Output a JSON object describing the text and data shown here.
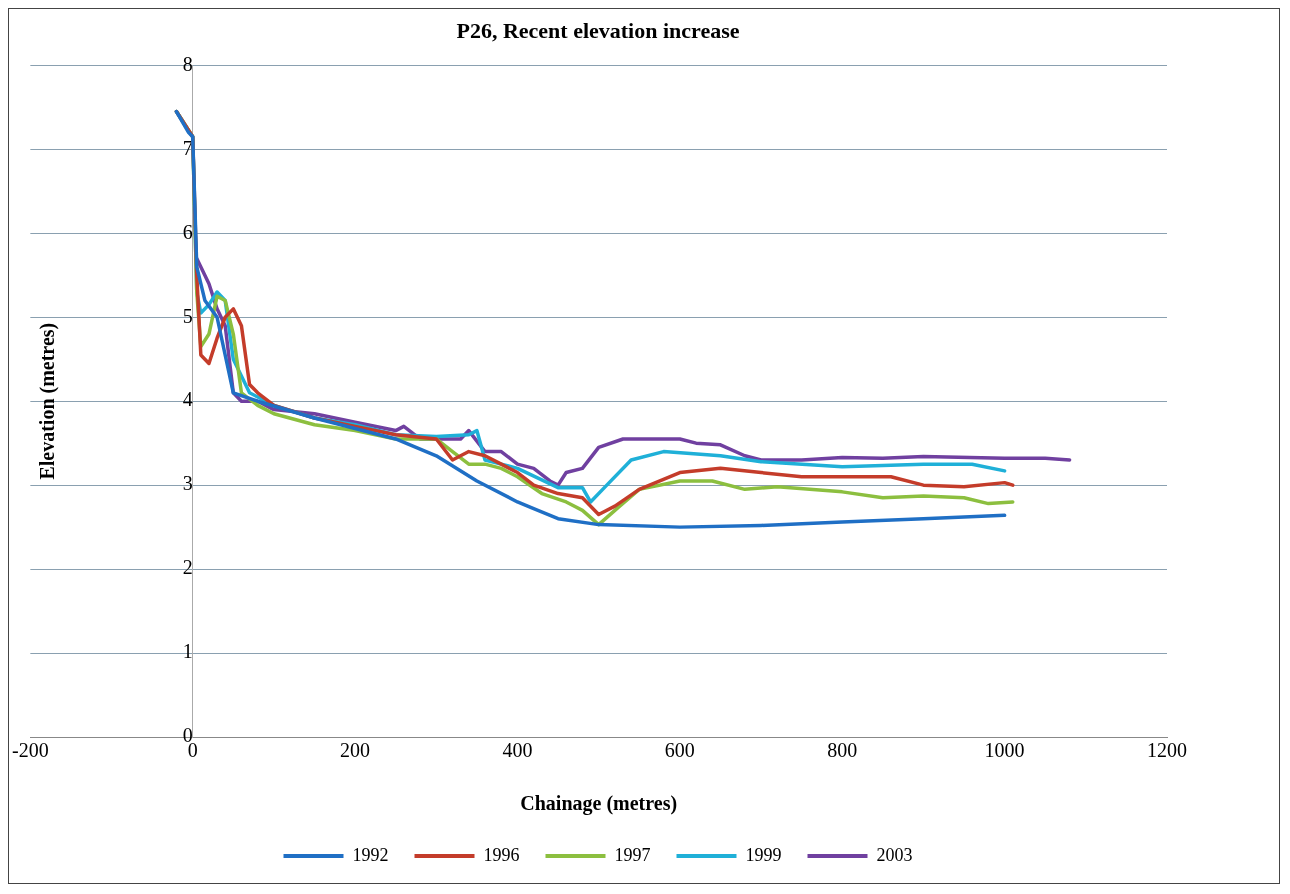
{
  "chart_data": {
    "type": "line",
    "title": "P26, Recent elevation increase",
    "xlabel": "Chainage (metres)",
    "ylabel": "Elevation (metres)",
    "xlim": [
      -200,
      1200
    ],
    "xticks": [
      -200,
      0,
      200,
      400,
      600,
      800,
      1000,
      1200
    ],
    "ylim": [
      0,
      8
    ],
    "yticks": [
      0,
      1,
      2,
      3,
      4,
      5,
      6,
      7,
      8
    ],
    "grid": "y",
    "legend": "bottom",
    "marker": "none",
    "line_style": "solid",
    "series": [
      {
        "name": "1992",
        "color": "#1f6fc5",
        "x": [
          -20,
          -5,
          0,
          5,
          15,
          30,
          50,
          80,
          150,
          250,
          300,
          350,
          400,
          450,
          500,
          600,
          700,
          800,
          900,
          1000
        ],
        "values": [
          7.45,
          7.2,
          7.15,
          5.6,
          5.2,
          5.0,
          4.1,
          4.0,
          3.8,
          3.55,
          3.35,
          3.05,
          2.8,
          2.6,
          2.53,
          2.5,
          2.52,
          2.56,
          2.6,
          2.64
        ]
      },
      {
        "name": "1996",
        "color": "#c43c2a",
        "x": [
          -20,
          0,
          5,
          10,
          20,
          30,
          40,
          50,
          60,
          70,
          80,
          100,
          150,
          200,
          250,
          300,
          320,
          340,
          360,
          380,
          400,
          420,
          450,
          480,
          500,
          520,
          550,
          600,
          650,
          700,
          750,
          800,
          860,
          900,
          950,
          1000,
          1010
        ],
        "values": [
          7.45,
          7.15,
          5.5,
          4.55,
          4.45,
          4.75,
          5.0,
          5.1,
          4.9,
          4.2,
          4.1,
          3.95,
          3.8,
          3.7,
          3.6,
          3.55,
          3.3,
          3.4,
          3.35,
          3.25,
          3.15,
          3.0,
          2.9,
          2.85,
          2.65,
          2.75,
          2.95,
          3.15,
          3.2,
          3.15,
          3.1,
          3.1,
          3.1,
          3.0,
          2.98,
          3.03,
          3.0
        ]
      },
      {
        "name": "1997",
        "color": "#8cbf3f",
        "x": [
          -20,
          0,
          5,
          10,
          20,
          30,
          40,
          50,
          60,
          80,
          100,
          150,
          200,
          250,
          300,
          320,
          340,
          360,
          380,
          400,
          430,
          460,
          480,
          500,
          520,
          550,
          600,
          640,
          680,
          720,
          800,
          850,
          900,
          950,
          980,
          1010
        ],
        "values": [
          7.45,
          7.15,
          5.3,
          4.65,
          4.8,
          5.25,
          5.2,
          4.8,
          4.1,
          3.95,
          3.85,
          3.72,
          3.65,
          3.55,
          3.55,
          3.4,
          3.25,
          3.25,
          3.2,
          3.1,
          2.9,
          2.8,
          2.7,
          2.53,
          2.7,
          2.95,
          3.05,
          3.05,
          2.95,
          2.98,
          2.92,
          2.85,
          2.87,
          2.85,
          2.78,
          2.8
        ]
      },
      {
        "name": "1999",
        "color": "#1fb0d8",
        "x": [
          -20,
          0,
          5,
          10,
          20,
          30,
          40,
          50,
          60,
          70,
          100,
          150,
          200,
          250,
          300,
          340,
          350,
          360,
          380,
          400,
          450,
          480,
          490,
          510,
          540,
          580,
          650,
          700,
          800,
          900,
          960,
          1000
        ],
        "values": [
          7.45,
          7.15,
          5.3,
          5.05,
          5.15,
          5.3,
          5.2,
          4.5,
          4.3,
          4.1,
          3.95,
          3.8,
          3.72,
          3.6,
          3.58,
          3.6,
          3.65,
          3.3,
          3.25,
          3.2,
          2.97,
          2.97,
          2.8,
          3.0,
          3.3,
          3.4,
          3.35,
          3.28,
          3.22,
          3.25,
          3.25,
          3.17
        ]
      },
      {
        "name": "2003",
        "color": "#7040a0",
        "x": [
          5,
          20,
          30,
          40,
          50,
          60,
          80,
          100,
          150,
          200,
          250,
          260,
          280,
          330,
          340,
          360,
          380,
          400,
          420,
          440,
          450,
          460,
          480,
          500,
          530,
          560,
          600,
          620,
          650,
          680,
          700,
          750,
          800,
          850,
          900,
          1000,
          1050,
          1080
        ],
        "values": [
          5.7,
          5.4,
          5.1,
          4.9,
          4.1,
          4.0,
          4.0,
          3.9,
          3.85,
          3.75,
          3.65,
          3.7,
          3.55,
          3.55,
          3.65,
          3.4,
          3.4,
          3.25,
          3.2,
          3.05,
          3.0,
          3.15,
          3.2,
          3.45,
          3.55,
          3.55,
          3.55,
          3.5,
          3.48,
          3.35,
          3.3,
          3.3,
          3.33,
          3.32,
          3.34,
          3.32,
          3.32,
          3.3
        ]
      }
    ]
  }
}
